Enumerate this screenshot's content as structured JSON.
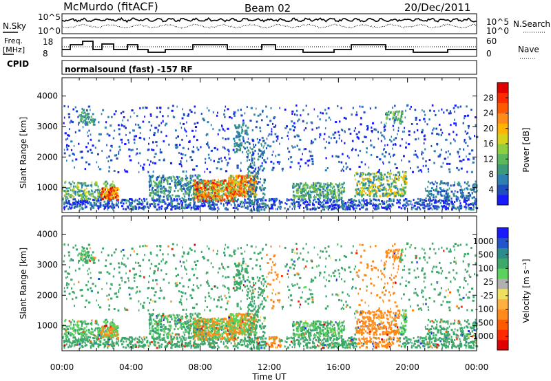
{
  "header": {
    "station": "McMurdo (fitACF)",
    "beam": "Beam 02",
    "date": "20/Dec/2011"
  },
  "top_panels": {
    "nsky_label": "N.Sky",
    "nsky_ticks": [
      "10^5",
      "10^0"
    ],
    "nsearch_label": "N.Search",
    "freq_label_line1": "Freq.",
    "freq_label_line2": "[MHz]",
    "freq_ticks": [
      "18",
      "8"
    ],
    "nave_label": "Nave",
    "nave_ticks": [
      "60",
      "0"
    ],
    "cpid_label": "CPID",
    "cpid_text": "normalsound (fast) -157 RF"
  },
  "chart_data": [
    {
      "type": "heatmap",
      "name": "power",
      "ylabel": "Slant Range [km]",
      "xlabel": "Time UT",
      "x_ticks": [
        "00:00",
        "04:00",
        "08:00",
        "12:00",
        "16:00",
        "20:00",
        "00:00"
      ],
      "y_ticks": [
        1000,
        2000,
        3000,
        4000
      ],
      "ylim": [
        180,
        4600
      ],
      "colorbar": {
        "label": "Power [dB]",
        "ticks": [
          "4",
          "8",
          "12",
          "16",
          "20",
          "24",
          "28"
        ],
        "colors": [
          "#1a1aff",
          "#1f4fbf",
          "#2f7fb0",
          "#3a9a7a",
          "#5cb85c",
          "#8fce3f",
          "#d9d21a",
          "#ffb400",
          "#ff8c1a",
          "#ff5a00",
          "#ff2a00",
          "#e00000"
        ]
      }
    },
    {
      "type": "heatmap",
      "name": "velocity",
      "ylabel": "Slant Range [km]",
      "xlabel": "Time UT",
      "x_ticks": [
        "00:00",
        "04:00",
        "08:00",
        "12:00",
        "16:00",
        "20:00",
        "00:00"
      ],
      "y_ticks": [
        1000,
        2000,
        3000,
        4000
      ],
      "ylim": [
        180,
        4600
      ],
      "colorbar": {
        "label": "Velocity [m s⁻¹]",
        "ticks": [
          "1000",
          "500",
          "100",
          "25",
          "-25",
          "-100",
          "-500",
          "-1000"
        ],
        "colors": [
          "#1a1aff",
          "#2255cc",
          "#2e8b8b",
          "#3da86a",
          "#5bd25b",
          "#b0b0b0",
          "#f0e060",
          "#ffb040",
          "#ff8c1a",
          "#ff5a00",
          "#ff2a00",
          "#e00000"
        ]
      }
    }
  ],
  "colors": {
    "power_main": "#3a8f6a",
    "velocity_main": "#3f9a6f",
    "velocity_neg": "#f08a1a"
  }
}
